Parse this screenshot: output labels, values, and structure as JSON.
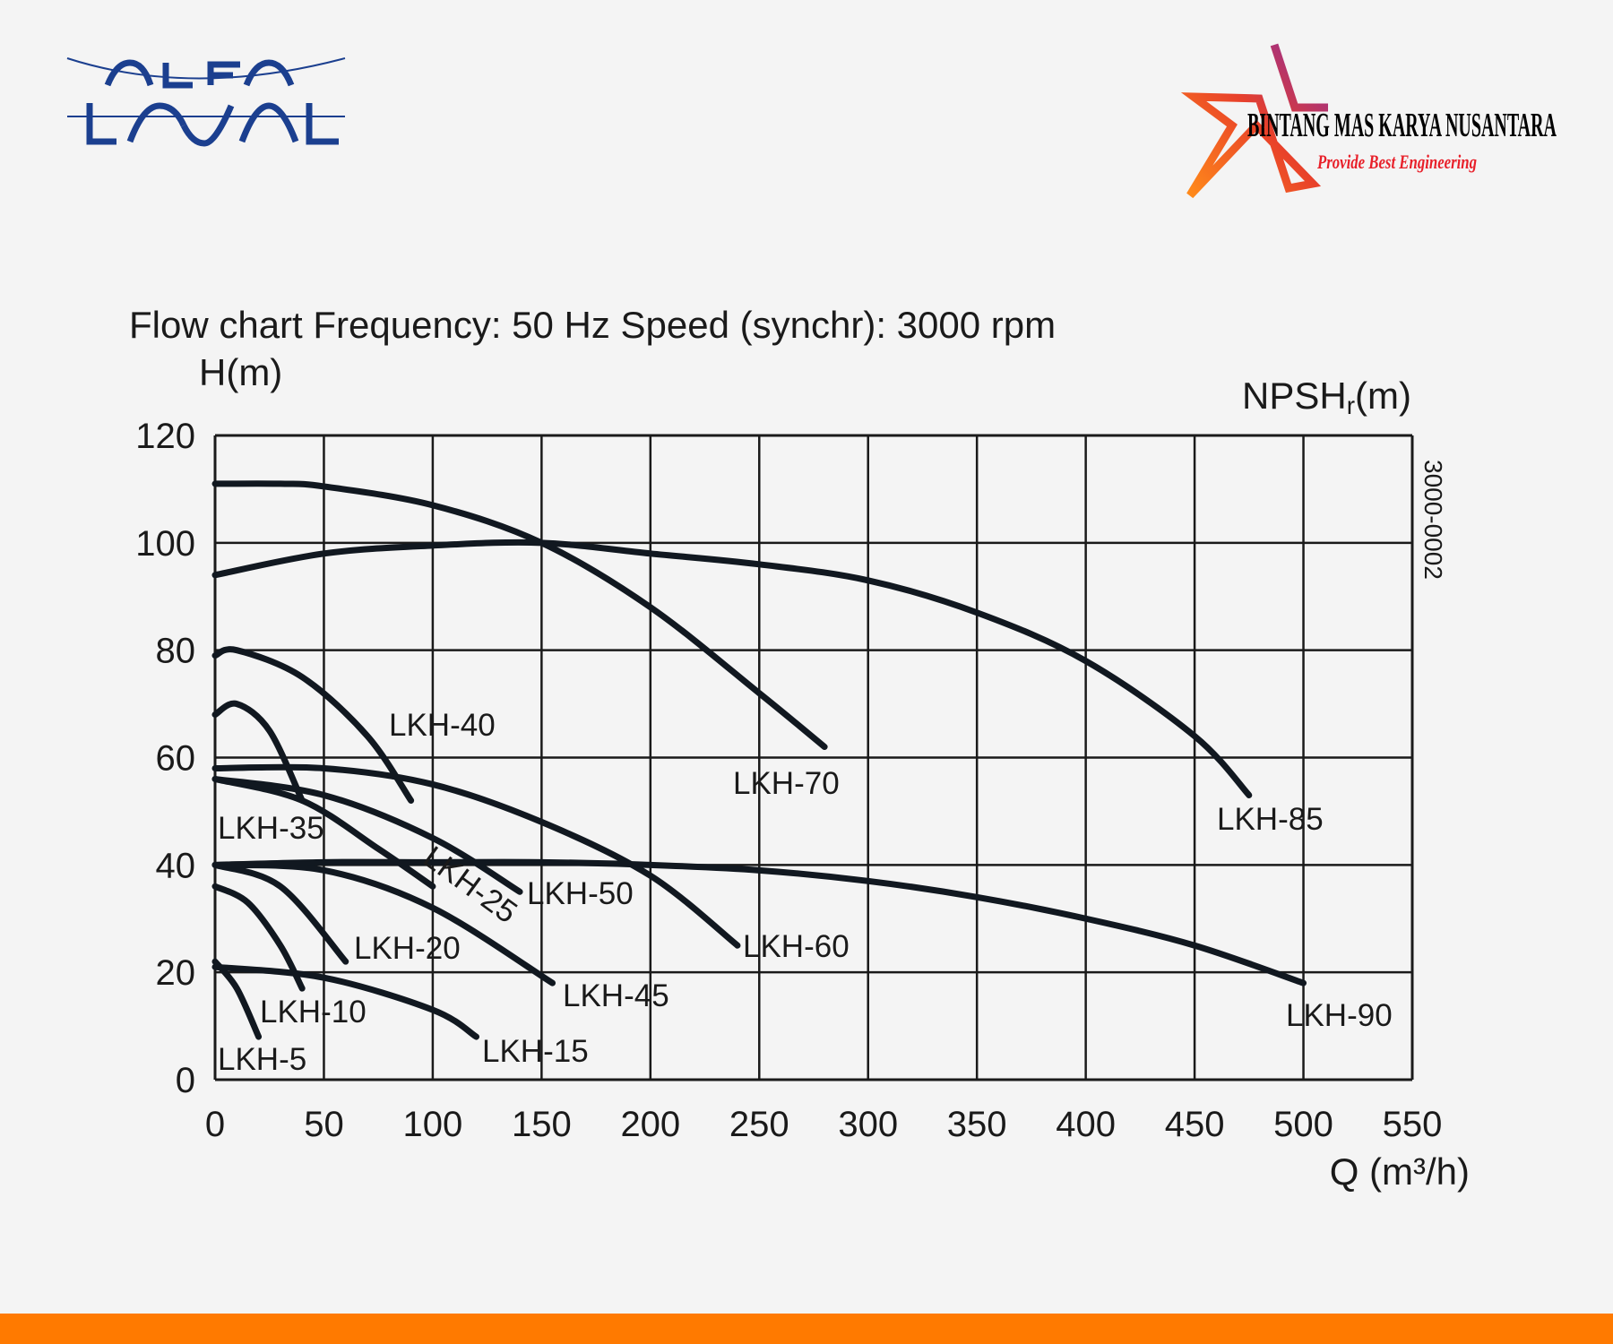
{
  "logos": {
    "left_brand": "ALFA LAVAL",
    "right_brand": "BINTANG MAS KARYA NUSANTARA",
    "right_tagline": "Provide Best Engineering"
  },
  "colors": {
    "alfa_blue": "#1b3f8f",
    "accent_orange": "#ff7a00",
    "curve": "#111820",
    "grid": "#1a1a1a",
    "tagline_red": "#e8202a"
  },
  "chart_data": {
    "type": "line",
    "title": "Flow chart Frequency: 50 Hz Speed (synchr): 3000 rpm",
    "ylabel": "H(m)",
    "ylabel_right": "NPSHr(m)",
    "ylabel_right_main": "NPSH",
    "ylabel_right_sub": "r",
    "ylabel_right_unit": "(m)",
    "xlabel": "Q (m³/h)",
    "side_code": "3000-0002",
    "xlim": [
      0,
      550
    ],
    "ylim": [
      0,
      120
    ],
    "xticks": [
      "0",
      "50",
      "100",
      "150",
      "200",
      "250",
      "300",
      "350",
      "400",
      "450",
      "500",
      "550"
    ],
    "yticks": [
      "0",
      "20",
      "40",
      "60",
      "80",
      "100",
      "120"
    ],
    "grid": true,
    "series": [
      {
        "name": "LKH-5",
        "x": [
          0,
          10,
          20
        ],
        "y": [
          22,
          17,
          8
        ]
      },
      {
        "name": "LKH-10",
        "x": [
          0,
          15,
          30,
          40
        ],
        "y": [
          36,
          33,
          25,
          17
        ]
      },
      {
        "name": "LKH-15",
        "x": [
          0,
          50,
          100,
          120
        ],
        "y": [
          21,
          19,
          13,
          8
        ]
      },
      {
        "name": "LKH-20",
        "x": [
          0,
          30,
          60
        ],
        "y": [
          40,
          36,
          22
        ]
      },
      {
        "name": "LKH-25",
        "x": [
          0,
          40,
          75,
          100
        ],
        "y": [
          56,
          52,
          43,
          36
        ]
      },
      {
        "name": "LKH-35",
        "x": [
          0,
          10,
          25,
          40
        ],
        "y": [
          68,
          70,
          65,
          52
        ]
      },
      {
        "name": "LKH-40",
        "x": [
          0,
          10,
          40,
          70,
          90
        ],
        "y": [
          79,
          80,
          75,
          64,
          52
        ]
      },
      {
        "name": "LKH-45",
        "x": [
          0,
          50,
          100,
          155
        ],
        "y": [
          40,
          39,
          32,
          18
        ]
      },
      {
        "name": "LKH-50",
        "x": [
          0,
          50,
          100,
          140
        ],
        "y": [
          56,
          53,
          45,
          35
        ]
      },
      {
        "name": "LKH-60",
        "x": [
          0,
          50,
          100,
          150,
          200,
          240
        ],
        "y": [
          58,
          58,
          55,
          48,
          38,
          25
        ]
      },
      {
        "name": "LKH-70",
        "x": [
          0,
          30,
          50,
          100,
          150,
          200,
          250,
          280
        ],
        "y": [
          111,
          111,
          110.5,
          107,
          100,
          88,
          72,
          62
        ]
      },
      {
        "name": "LKH-85",
        "x": [
          0,
          50,
          100,
          150,
          200,
          250,
          300,
          350,
          400,
          450,
          475
        ],
        "y": [
          94,
          98,
          99.5,
          100,
          98,
          96,
          93,
          87,
          78,
          64,
          53
        ]
      },
      {
        "name": "LKH-90",
        "x": [
          0,
          50,
          100,
          150,
          200,
          250,
          300,
          350,
          400,
          450,
          500
        ],
        "y": [
          40,
          40.5,
          40.5,
          40.5,
          40,
          39,
          37,
          34,
          30,
          25,
          18
        ]
      }
    ]
  }
}
